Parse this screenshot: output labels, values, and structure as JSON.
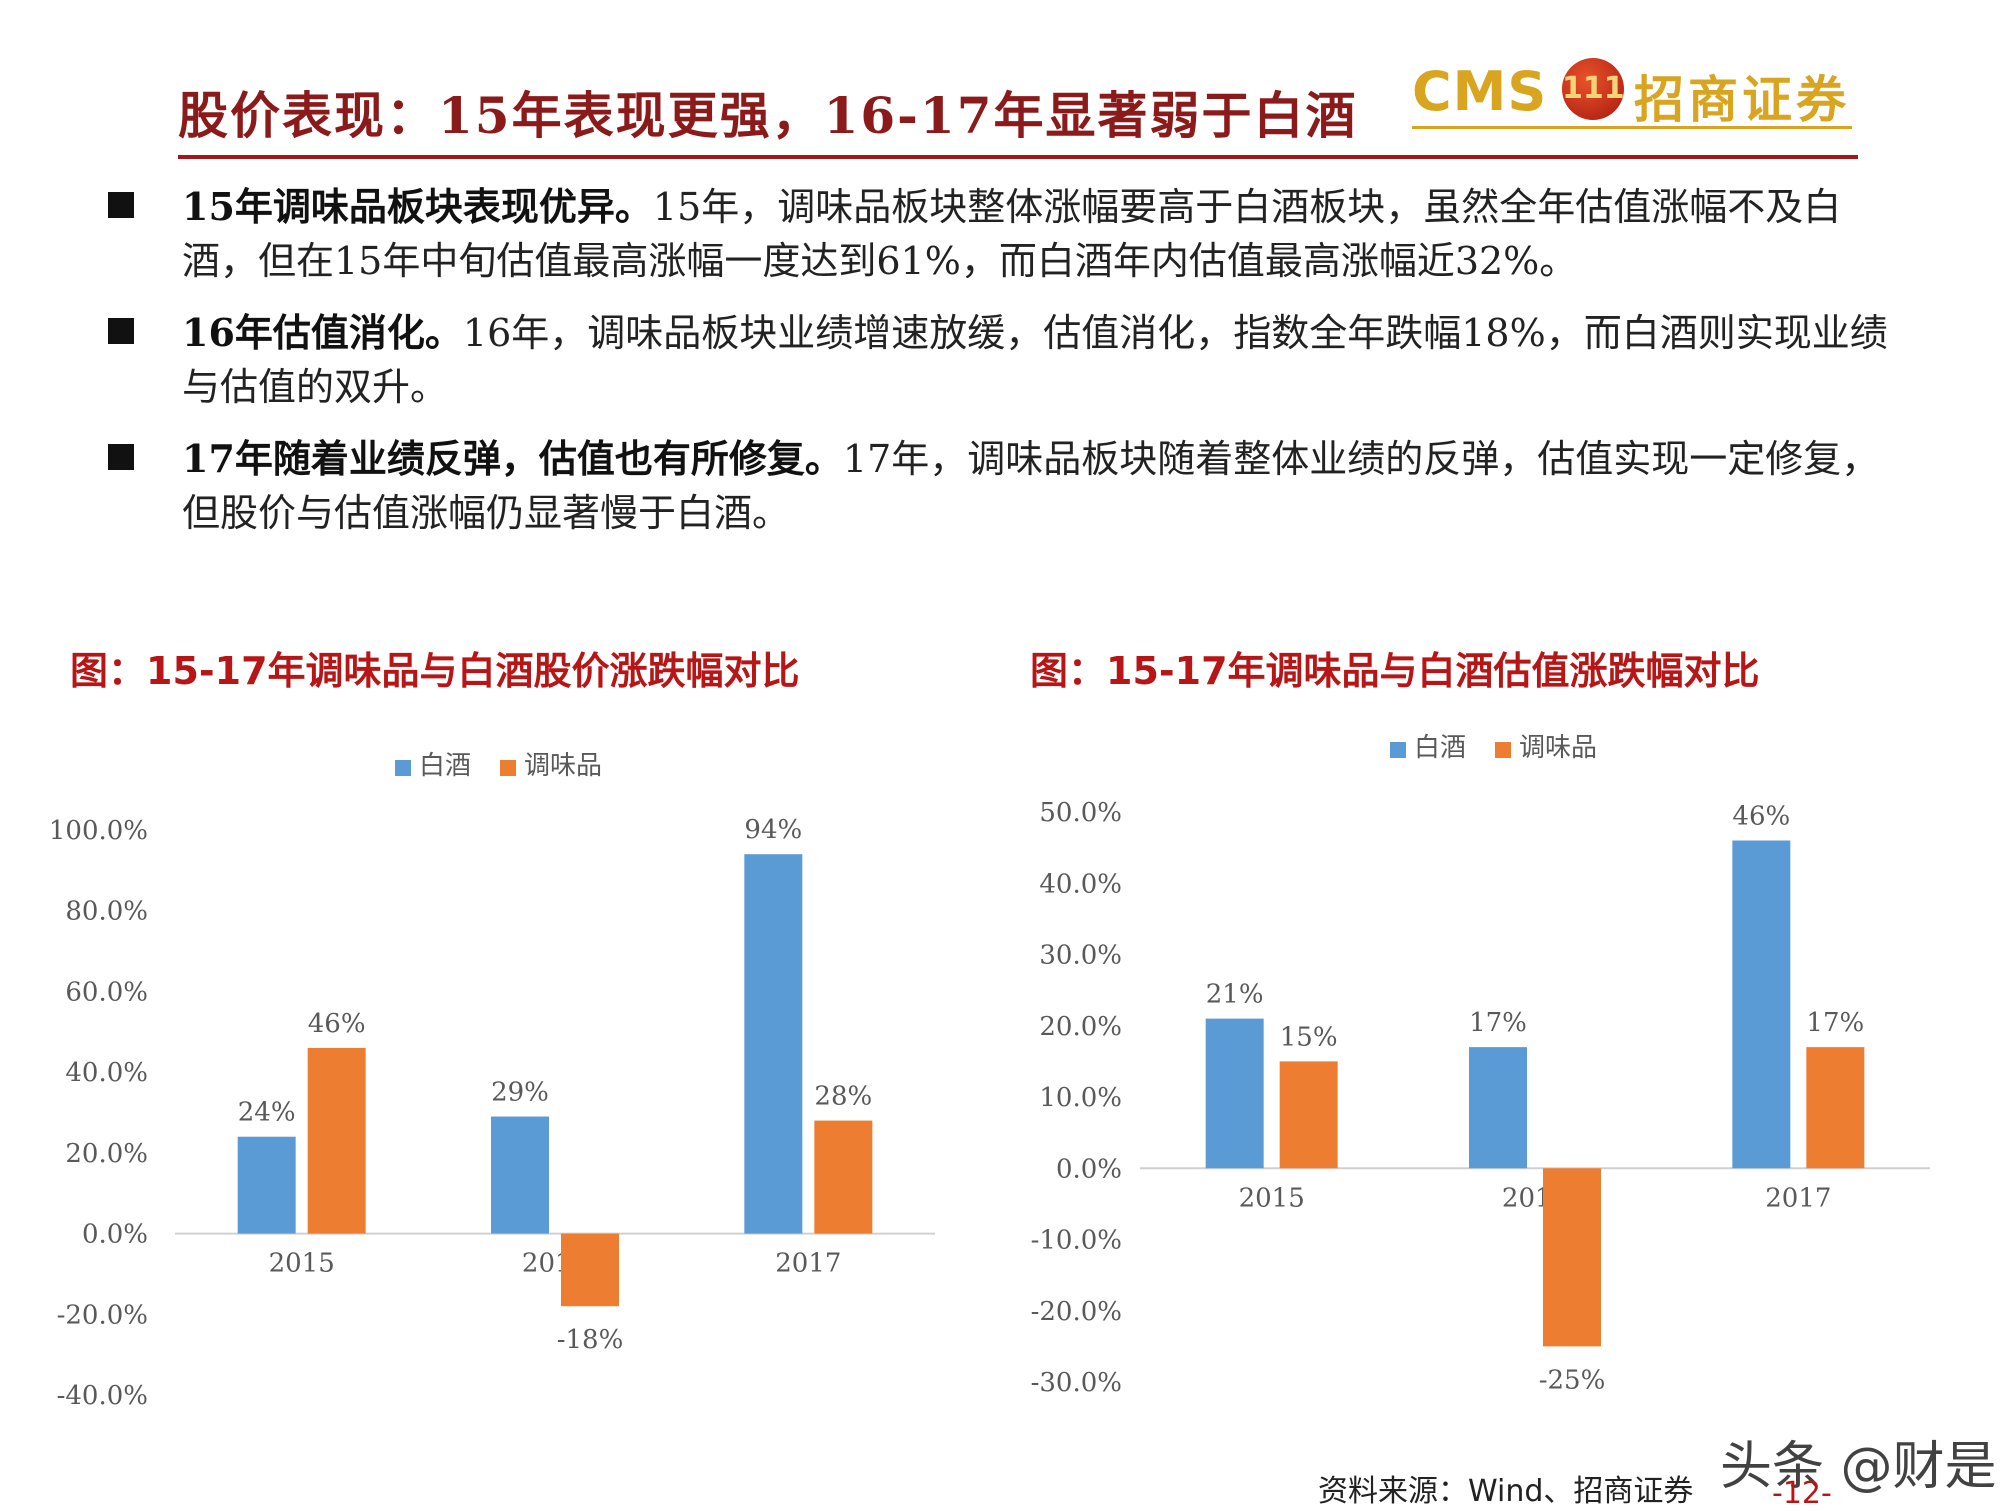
{
  "slide": {
    "title": "股价表现：15年表现更强，16-17年显著弱于白酒"
  },
  "logo": {
    "cms": "CMS",
    "badge": "111",
    "name_cn": "招商证券"
  },
  "bullets": [
    {
      "lead": "15年调味品板块表现优异。",
      "body": "15年，调味品板块整体涨幅要高于白酒板块，虽然全年估值涨幅不及白酒，但在15年中旬估值最高涨幅一度达到61%，而白酒年内估值最高涨幅近32%。"
    },
    {
      "lead": "16年估值消化。",
      "body": "16年，调味品板块业绩增速放缓，估值消化，指数全年跌幅18%，而白酒则实现业绩与估值的双升。"
    },
    {
      "lead": "17年随着业绩反弹，估值也有所修复。",
      "body": "17年，调味品板块随着整体业绩的反弹，估值实现一定修复，但股价与估值涨幅仍显著慢于白酒。"
    }
  ],
  "colors": {
    "baijiu": "#5b9bd5",
    "condiment": "#ed7d31",
    "accent_red": "#b81616",
    "axis_text": "#595959"
  },
  "chart_data": [
    {
      "type": "bar",
      "title": "图：15-17年调味品与白酒股价涨跌幅对比",
      "categories": [
        "2015",
        "2016",
        "2017"
      ],
      "series": [
        {
          "name": "白酒",
          "values": [
            24,
            29,
            94
          ],
          "labels": [
            "24%",
            "29%",
            "94%"
          ]
        },
        {
          "name": "调味品",
          "values": [
            46,
            -18,
            28
          ],
          "labels": [
            "46%",
            "-18%",
            "28%"
          ]
        }
      ],
      "yticks": [
        "100.0%",
        "80.0%",
        "60.0%",
        "40.0%",
        "20.0%",
        "0.0%",
        "-20.0%",
        "-40.0%"
      ],
      "ylim": [
        -40,
        100
      ],
      "legend": "top",
      "grid": false
    },
    {
      "type": "bar",
      "title": "图：15-17年调味品与白酒估值涨跌幅对比",
      "categories": [
        "2015",
        "2016",
        "2017"
      ],
      "series": [
        {
          "name": "白酒",
          "values": [
            21,
            17,
            46
          ],
          "labels": [
            "21%",
            "17%",
            "46%"
          ]
        },
        {
          "name": "调味品",
          "values": [
            15,
            -25,
            17
          ],
          "labels": [
            "15%",
            "-25%",
            "17%"
          ]
        }
      ],
      "yticks": [
        "50.0%",
        "40.0%",
        "30.0%",
        "20.0%",
        "10.0%",
        "0.0%",
        "-10.0%",
        "-20.0%",
        "-30.0%"
      ],
      "ylim": [
        -30,
        50
      ],
      "legend": "top",
      "grid": false
    }
  ],
  "footer": {
    "source": "资料来源：Wind、招商证券",
    "page": "-12-",
    "watermark": "头条 @财是"
  }
}
